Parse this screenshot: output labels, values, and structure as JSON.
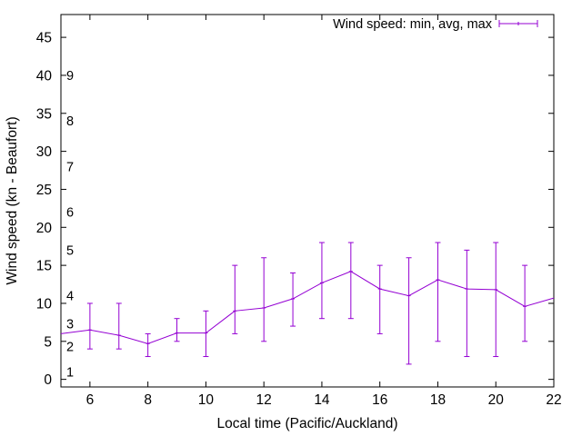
{
  "chart_data": {
    "type": "line",
    "title": "",
    "xlabel": "Local time (Pacific/Auckland)",
    "ylabel": "Wind speed (kn - Beaufort)",
    "xlim": [
      5,
      22
    ],
    "ylim": [
      -1,
      48
    ],
    "xticks": [
      6,
      8,
      10,
      12,
      14,
      16,
      18,
      20,
      22
    ],
    "yticks": [
      0,
      5,
      10,
      15,
      20,
      25,
      30,
      35,
      40,
      45
    ],
    "grid": false,
    "legend": {
      "position": "top-right",
      "label": "Wind speed: min, avg, max"
    },
    "beaufort_labels": [
      {
        "label": "1",
        "y": 1
      },
      {
        "label": "2",
        "y": 4.3
      },
      {
        "label": "3",
        "y": 7.3
      },
      {
        "label": "4",
        "y": 11
      },
      {
        "label": "5",
        "y": 17
      },
      {
        "label": "6",
        "y": 22
      },
      {
        "label": "7",
        "y": 28
      },
      {
        "label": "8",
        "y": 34
      },
      {
        "label": "9",
        "y": 40
      }
    ],
    "series": [
      {
        "name": "Wind speed: min, avg, max",
        "color": "#9400d3",
        "x": [
          5,
          6,
          7,
          8,
          9,
          10,
          11,
          12,
          13,
          14,
          15,
          16,
          17,
          18,
          19,
          20,
          21,
          22
        ],
        "avg": [
          6.0,
          6.5,
          5.8,
          4.7,
          6.1,
          6.1,
          9.0,
          9.4,
          10.6,
          12.7,
          14.2,
          11.9,
          11.0,
          13.1,
          11.9,
          11.8,
          9.6,
          10.7
        ],
        "min": [
          null,
          4.0,
          4.0,
          3.0,
          5.0,
          3.0,
          6.0,
          5.0,
          7.0,
          8.0,
          8.0,
          6.0,
          2.0,
          5.0,
          3.0,
          3.0,
          5.0,
          null
        ],
        "max": [
          null,
          10.0,
          10.0,
          6.0,
          8.0,
          9.0,
          15.0,
          16.0,
          14.0,
          18.0,
          18.0,
          15.0,
          16.0,
          18.0,
          17.0,
          18.0,
          15.0,
          null
        ]
      }
    ]
  }
}
